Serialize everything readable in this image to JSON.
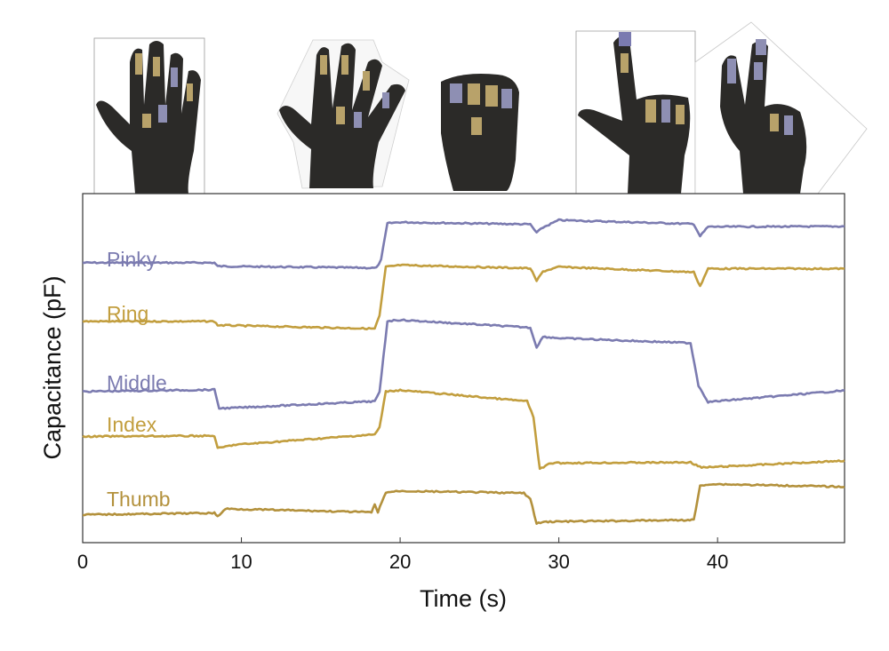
{
  "chart_data": {
    "type": "line",
    "xlabel": "Time (s)",
    "ylabel": "Capacitance (pF)",
    "xlim": [
      0,
      48
    ],
    "ylim": [
      0,
      100
    ],
    "xticks": [
      "0",
      "10",
      "20",
      "30",
      "40"
    ],
    "xtick_values": [
      0,
      10,
      20,
      30,
      40
    ],
    "yticks_shown": false,
    "grid": false,
    "colors": {
      "pinky": "#7b7bb0",
      "ring": "#c29e3e",
      "middle": "#7b7bb0",
      "index": "#c29e3e",
      "thumb": "#b3913c"
    },
    "gestures_shown": [
      "open hand",
      "spread fingers",
      "fist",
      "index pointing",
      "two fingers (V sign)"
    ],
    "series": [
      {
        "name": "Pinky",
        "color": "#7b7bb0",
        "points": [
          [
            0,
            80.2
          ],
          [
            8.3,
            80.2
          ],
          [
            8.5,
            79.2
          ],
          [
            18.5,
            78.7
          ],
          [
            18.8,
            81
          ],
          [
            19.2,
            91.5
          ],
          [
            20,
            91.8
          ],
          [
            28.2,
            91.2
          ],
          [
            28.6,
            88.8
          ],
          [
            29,
            90.3
          ],
          [
            30,
            92.4
          ],
          [
            38.5,
            91.3
          ],
          [
            38.9,
            87.8
          ],
          [
            39.4,
            90.5
          ],
          [
            48,
            90.6
          ]
        ]
      },
      {
        "name": "Ring",
        "color": "#c29e3e",
        "points": [
          [
            0,
            63.4
          ],
          [
            8.3,
            63.4
          ],
          [
            8.5,
            62.3
          ],
          [
            18.4,
            61.3
          ],
          [
            18.7,
            65
          ],
          [
            19.1,
            79
          ],
          [
            20,
            79.5
          ],
          [
            28.2,
            78.6
          ],
          [
            28.6,
            75
          ],
          [
            29,
            77.7
          ],
          [
            30,
            79
          ],
          [
            38.5,
            77.5
          ],
          [
            38.9,
            73.5
          ],
          [
            39.4,
            78.5
          ],
          [
            48,
            78.5
          ]
        ]
      },
      {
        "name": "Middle",
        "color": "#7b7bb0",
        "points": [
          [
            0,
            43.3
          ],
          [
            8.3,
            43.8
          ],
          [
            8.6,
            38.5
          ],
          [
            9.5,
            38.6
          ],
          [
            18.4,
            40.5
          ],
          [
            18.7,
            43
          ],
          [
            19.2,
            63.5
          ],
          [
            20,
            63.8
          ],
          [
            28.2,
            61.6
          ],
          [
            28.6,
            56
          ],
          [
            29,
            59
          ],
          [
            30,
            58.6
          ],
          [
            38.3,
            57.2
          ],
          [
            38.8,
            45
          ],
          [
            39.4,
            40.3
          ],
          [
            48,
            43.6
          ]
        ]
      },
      {
        "name": "Index",
        "color": "#c29e3e",
        "points": [
          [
            0,
            30.4
          ],
          [
            8.3,
            30.6
          ],
          [
            8.5,
            27
          ],
          [
            9.5,
            28
          ],
          [
            18.4,
            31
          ],
          [
            18.7,
            33
          ],
          [
            19.1,
            43.3
          ],
          [
            20,
            43.7
          ],
          [
            28,
            40.5
          ],
          [
            28.4,
            36
          ],
          [
            28.8,
            21
          ],
          [
            29.5,
            22.8
          ],
          [
            38.3,
            23
          ],
          [
            39,
            21.5
          ],
          [
            48,
            23.5
          ]
        ]
      },
      {
        "name": "Thumb",
        "color": "#b3913c",
        "points": [
          [
            0,
            8
          ],
          [
            8.3,
            8.5
          ],
          [
            8.5,
            7.5
          ],
          [
            9,
            9.7
          ],
          [
            18.2,
            8.7
          ],
          [
            18.4,
            10.8
          ],
          [
            18.6,
            8.8
          ],
          [
            19.1,
            14.4
          ],
          [
            20,
            14.8
          ],
          [
            27.8,
            14.2
          ],
          [
            28.2,
            12.5
          ],
          [
            28.6,
            5.5
          ],
          [
            29.2,
            6
          ],
          [
            38.5,
            6.5
          ],
          [
            38.9,
            16.2
          ],
          [
            39.5,
            16.8
          ],
          [
            48,
            16
          ]
        ]
      }
    ]
  }
}
